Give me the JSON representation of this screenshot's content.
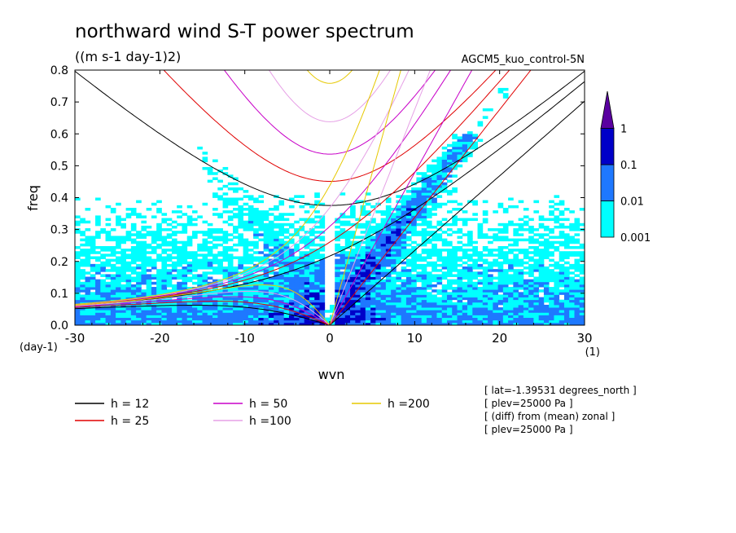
{
  "chart_data": {
    "type": "heatmap",
    "title": "northward wind S-T power spectrum",
    "subtitle": "((m s-1 day-1)2)",
    "run_label": "AGCM5_kuo_control-5N",
    "xlabel": "wvn",
    "ylabel": "freq",
    "x_unit_label": "(1)",
    "y_unit_label": "(day-1)",
    "xlim": [
      -30,
      30
    ],
    "ylim": [
      0,
      0.8
    ],
    "x_ticks": [
      -30,
      -20,
      -10,
      0,
      10,
      20,
      30
    ],
    "x_tick_labels": [
      "-30",
      "-20",
      "-10",
      "0",
      "10",
      "20",
      "30"
    ],
    "y_ticks": [
      0,
      0.1,
      0.2,
      0.3,
      0.4,
      0.5,
      0.6,
      0.7,
      0.8
    ],
    "y_tick_labels": [
      "0.0",
      "0.1",
      "0.2",
      "0.3",
      "0.4",
      "0.5",
      "0.6",
      "0.7",
      "0.8"
    ],
    "colorbar": {
      "levels": [
        0.001,
        0.01,
        0.1,
        1
      ],
      "labels": [
        "0.001",
        "0.01",
        "0.1",
        "1"
      ],
      "colors": [
        "#00ffff",
        "#1e78ff",
        "#0000c8",
        "#5a00a0"
      ]
    },
    "dispersion_curves": [
      {
        "label": "h = 12",
        "h": 12,
        "color": "#000000"
      },
      {
        "label": "h = 25",
        "h": 25,
        "color": "#e00000"
      },
      {
        "label": "h = 50",
        "h": 50,
        "color": "#c800c8"
      },
      {
        "label": "h =100",
        "h": 100,
        "color": "#e6a0e6"
      },
      {
        "label": "h =200",
        "h": 200,
        "color": "#e6c800"
      }
    ],
    "info_lines": [
      "[ lat=-1.39531 degrees_north ]",
      "[ plev=25000 Pa ]",
      "[ (diff) from (mean) zonal ]",
      "[ plev=25000 Pa ]"
    ]
  }
}
